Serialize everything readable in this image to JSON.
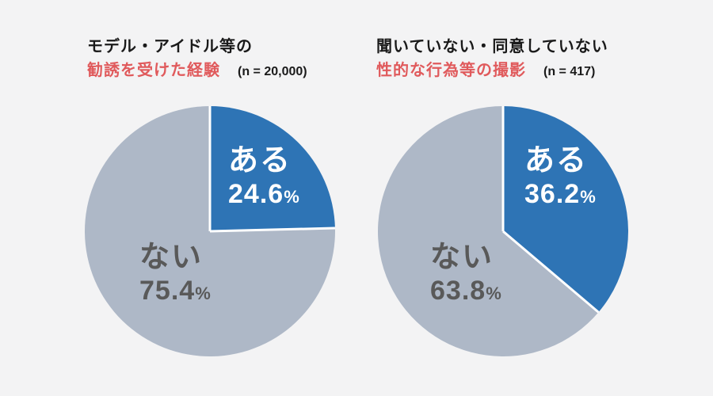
{
  "page": {
    "background": "#F3F3F4",
    "percent_sign": "%"
  },
  "colors": {
    "title_text": "#1A1A1A",
    "highlight_text": "#E05A5C",
    "yes_slice": "#2E74B5",
    "no_slice": "#AEB8C7",
    "separator": "#FFFFFF"
  },
  "chart_data": [
    {
      "type": "pie",
      "title_line1": "モデル・アイドル等の",
      "title_line2_highlight": "勧誘を受けた経験",
      "n_label": "(n = 20,000)",
      "start_angle_deg": 0,
      "direction": "clockwise",
      "separator_color": "#FFFFFF",
      "slices": [
        {
          "label": "ある",
          "value": 24.6,
          "color": "#2E74B5",
          "label_color": "#FFFFFF"
        },
        {
          "label": "ない",
          "value": 75.4,
          "color": "#AEB8C7",
          "label_color": "#595959"
        }
      ]
    },
    {
      "type": "pie",
      "title_line1": "聞いていない・同意していない",
      "title_line2_highlight": "性的な行為等の撮影",
      "n_label": "(n = 417)",
      "start_angle_deg": 0,
      "direction": "clockwise",
      "separator_color": "#FFFFFF",
      "slices": [
        {
          "label": "ある",
          "value": 36.2,
          "color": "#2E74B5",
          "label_color": "#FFFFFF"
        },
        {
          "label": "ない",
          "value": 63.8,
          "color": "#AEB8C7",
          "label_color": "#595959"
        }
      ]
    }
  ]
}
